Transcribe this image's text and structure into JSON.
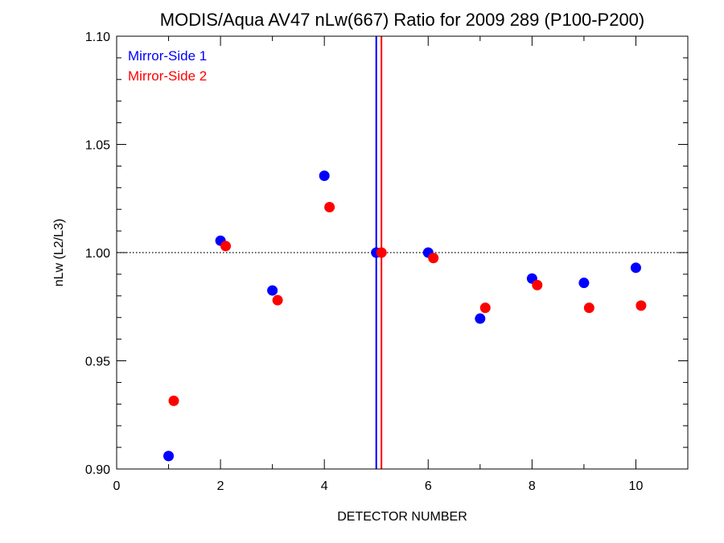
{
  "chart_data": {
    "type": "scatter",
    "title": "MODIS/Aqua AV47 nLw(667) Ratio for 2009 289 (P100-P200)",
    "xlabel": "DETECTOR NUMBER",
    "ylabel": "nLw (L2/L3)",
    "xlim": [
      0,
      11
    ],
    "ylim": [
      0.9,
      1.1
    ],
    "xticks": [
      0,
      2,
      4,
      6,
      8,
      10
    ],
    "yticks": [
      0.9,
      0.95,
      1.0,
      1.05,
      1.1
    ],
    "xtick_labels": [
      "0",
      "2",
      "4",
      "6",
      "8",
      "10"
    ],
    "ytick_labels": [
      "0.90",
      "0.95",
      "1.00",
      "1.05",
      "1.10"
    ],
    "reference_line_y": 1.0,
    "vertical_lines": [
      {
        "x": 5.0,
        "color": "#0000ff"
      },
      {
        "x": 5.1,
        "color": "#ff0000"
      }
    ],
    "legend_position": "top-left",
    "grid": false,
    "series": [
      {
        "name": "Mirror-Side 1",
        "color": "#0000ff",
        "x": [
          1,
          2,
          3,
          4,
          5,
          6,
          7,
          8,
          9,
          10
        ],
        "y": [
          0.906,
          1.0055,
          0.9825,
          1.0355,
          1.0,
          1.0,
          0.9695,
          0.988,
          0.986,
          0.993
        ]
      },
      {
        "name": "Mirror-Side 2",
        "color": "#ff0000",
        "x": [
          1.1,
          2.1,
          3.1,
          4.1,
          5.1,
          6.1,
          7.1,
          8.1,
          9.1,
          10.1
        ],
        "y": [
          0.9315,
          1.003,
          0.978,
          1.021,
          1.0,
          0.9975,
          0.9745,
          0.985,
          0.9745,
          0.9755
        ]
      }
    ]
  }
}
